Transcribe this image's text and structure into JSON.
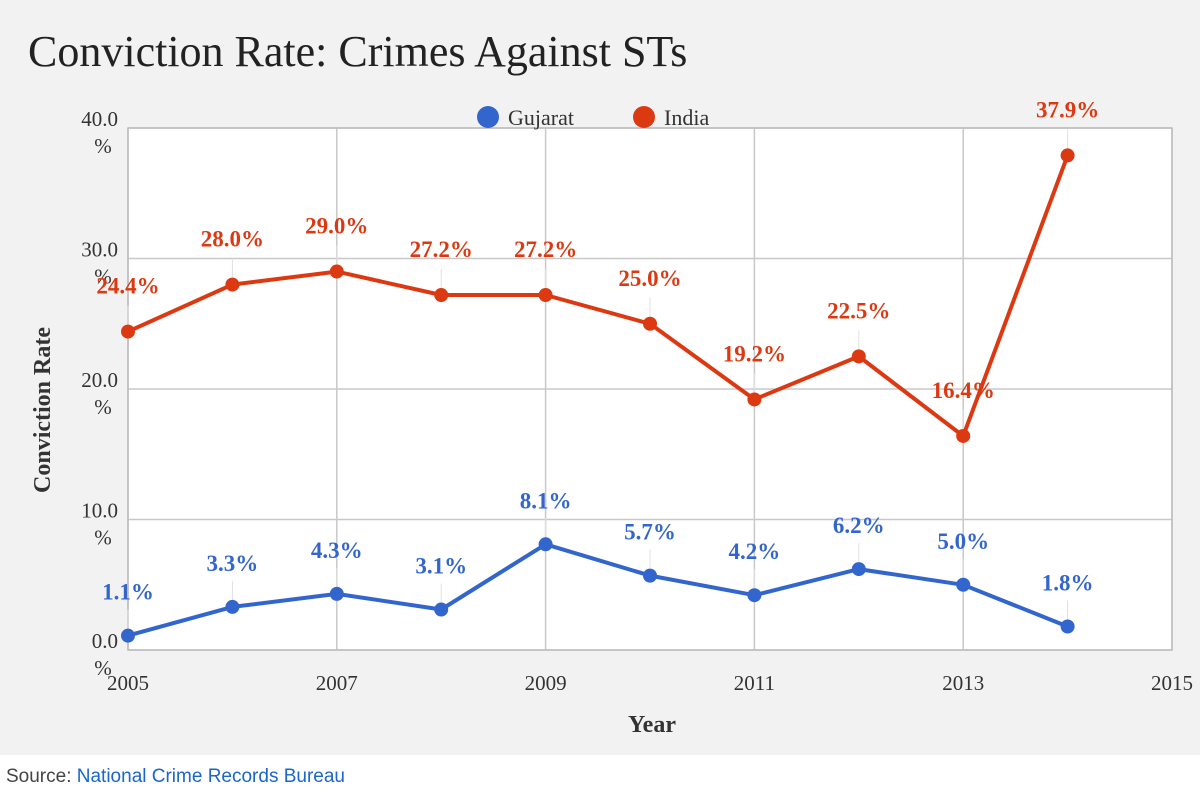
{
  "chart_data": {
    "type": "line",
    "title": "Conviction Rate: Crimes Against STs",
    "xlabel": "Year",
    "ylabel": "Conviction Rate",
    "x": [
      2005,
      2006,
      2007,
      2008,
      2009,
      2010,
      2011,
      2012,
      2013,
      2014
    ],
    "xlim": [
      2005,
      2015
    ],
    "ylim": [
      0,
      40
    ],
    "x_ticks": [
      2005,
      2007,
      2009,
      2011,
      2013,
      2015
    ],
    "y_ticks": [
      0,
      10,
      20,
      30,
      40
    ],
    "y_tick_labels": [
      {
        "value": "0.0",
        "unit": "%"
      },
      {
        "value": "10.0",
        "unit": "%"
      },
      {
        "value": "20.0",
        "unit": "%"
      },
      {
        "value": "30.0",
        "unit": "%"
      },
      {
        "value": "40.0",
        "unit": "%"
      }
    ],
    "grid": true,
    "legend_position": "top",
    "series": [
      {
        "name": "Gujarat",
        "color": "#3366cc",
        "values": [
          1.1,
          3.3,
          4.3,
          3.1,
          8.1,
          5.7,
          4.2,
          6.2,
          5.0,
          1.8
        ],
        "labels": [
          "1.1%",
          "3.3%",
          "4.3%",
          "3.1%",
          "8.1%",
          "5.7%",
          "4.2%",
          "6.2%",
          "5.0%",
          "1.8%"
        ]
      },
      {
        "name": "India",
        "color": "#dc3912",
        "values": [
          24.4,
          28.0,
          29.0,
          27.2,
          27.2,
          25.0,
          19.2,
          22.5,
          16.4,
          37.9
        ],
        "labels": [
          "24.4%",
          "28.0%",
          "29.0%",
          "27.2%",
          "27.2%",
          "25.0%",
          "19.2%",
          "22.5%",
          "16.4%",
          "37.9%"
        ]
      }
    ]
  },
  "source": {
    "prefix": "Source: ",
    "link_text": "National Crime Records Bureau"
  }
}
